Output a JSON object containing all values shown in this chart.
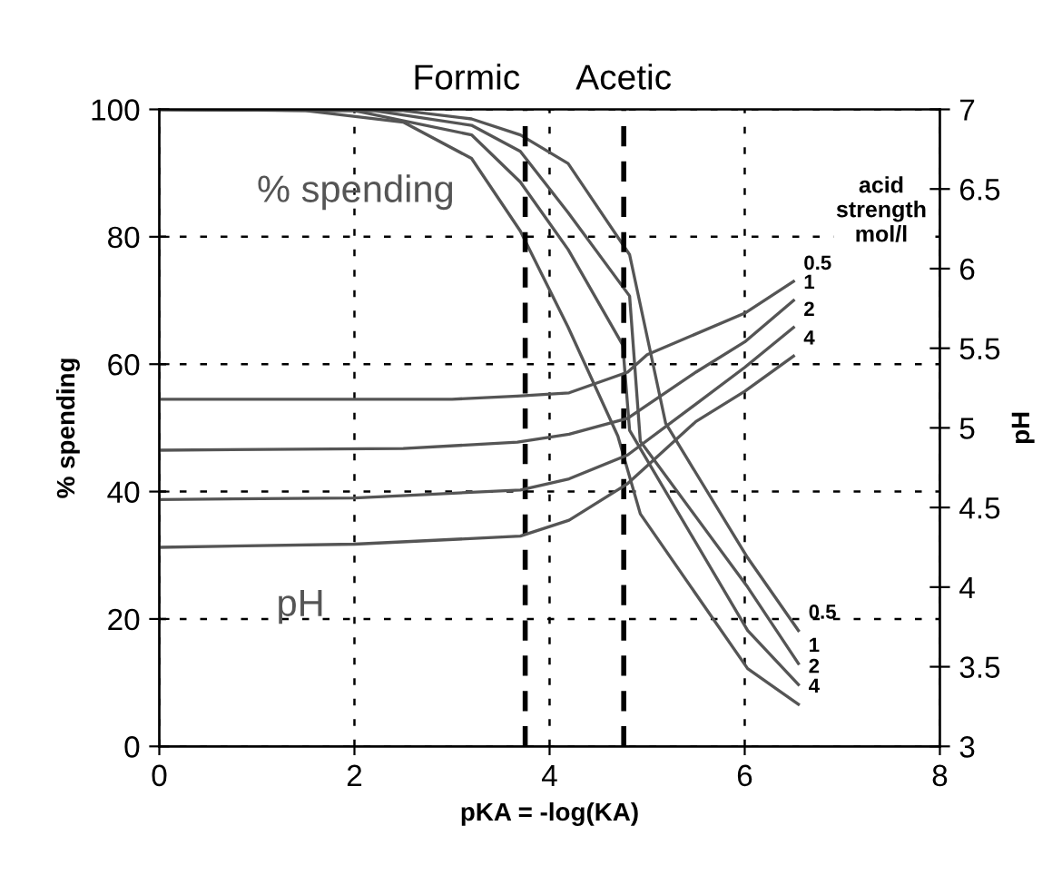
{
  "chart_data": {
    "type": "line",
    "xlabel": "pKA = -log(KA)",
    "ylabel": "% spending",
    "y2label": "pH",
    "xlim": [
      0,
      8
    ],
    "xticks": [
      0,
      2,
      4,
      6,
      8
    ],
    "ylim": [
      0,
      100
    ],
    "yticks": [
      0,
      20,
      40,
      60,
      80,
      100
    ],
    "y2lim": [
      3,
      7
    ],
    "y2ticks": [
      3,
      3.5,
      4,
      4.5,
      5,
      5.5,
      6,
      6.5,
      7
    ],
    "grid": true,
    "legend": false,
    "marker": "none",
    "line_style": "solid",
    "series": [
      {
        "name": "0.5",
        "color": "#555555",
        "x": [
          0,
          2.5,
          3.2,
          3.7,
          4.19,
          4.82,
          5.19,
          6.03,
          6.55
        ],
        "values": [
          100,
          99.8,
          98.5,
          96,
          91.5,
          77.2,
          50.7,
          29.6,
          18.2
        ]
      },
      {
        "name": "1",
        "color": "#555555",
        "x": [
          0,
          2.2,
          3.2,
          3.7,
          4.19,
          4.82,
          4.93,
          6.03,
          6.55
        ],
        "values": [
          100,
          99.8,
          97.5,
          93.4,
          83.8,
          70.7,
          47.9,
          25,
          13
        ]
      },
      {
        "name": "2",
        "color": "#555555",
        "x": [
          0,
          2,
          3.2,
          3.7,
          4.19,
          4.75,
          4.82,
          6.03,
          6.55
        ],
        "values": [
          100,
          99.8,
          96,
          88.6,
          78,
          63,
          49.6,
          18.2,
          9.7
        ]
      },
      {
        "name": "4",
        "color": "#555555",
        "x": [
          0,
          1.5,
          2.5,
          3.2,
          3.7,
          4.19,
          4.7,
          4.93,
          6.03,
          6.55
        ],
        "values": [
          100,
          99.8,
          98,
          92.3,
          80.9,
          65.8,
          48.7,
          36.5,
          12.2,
          6.6
        ]
      },
      {
        "name": "0.5",
        "color": "#555555",
        "axis": "y2",
        "x": [
          0,
          3,
          3.67,
          4.2,
          4.8,
          5,
          6,
          6.5
        ],
        "values": [
          5.18,
          5.18,
          5.2,
          5.22,
          5.35,
          5.46,
          5.72,
          5.92
        ]
      },
      {
        "name": "1",
        "color": "#555555",
        "axis": "y2",
        "x": [
          0,
          2.5,
          3.67,
          4.2,
          4.8,
          5.5,
          6,
          6.5
        ],
        "values": [
          4.86,
          4.87,
          4.91,
          4.96,
          5.06,
          5.35,
          5.54,
          5.8
        ]
      },
      {
        "name": "2",
        "color": "#555555",
        "axis": "y2",
        "x": [
          0,
          2,
          3.7,
          4.2,
          4.8,
          5.5,
          6,
          6.5
        ],
        "values": [
          4.55,
          4.56,
          4.61,
          4.68,
          4.83,
          5.15,
          5.38,
          5.63
        ]
      },
      {
        "name": "4",
        "color": "#555555",
        "axis": "y2",
        "x": [
          0,
          2,
          3.7,
          4.2,
          4.8,
          5.5,
          6,
          6.5
        ],
        "values": [
          4.25,
          4.27,
          4.32,
          4.42,
          4.65,
          5.04,
          5.23,
          5.45
        ]
      }
    ],
    "ref_lines": [
      {
        "axis": "x",
        "value": 3.75,
        "label": "Formic",
        "color": "#000000",
        "line_style": "dashed"
      },
      {
        "axis": "x",
        "value": 4.76,
        "label": "Acetic",
        "color": "#000000",
        "line_style": "dashed"
      }
    ],
    "annotations": [
      "% spending",
      "pH",
      "acid\nstrength\nmol/l"
    ]
  }
}
